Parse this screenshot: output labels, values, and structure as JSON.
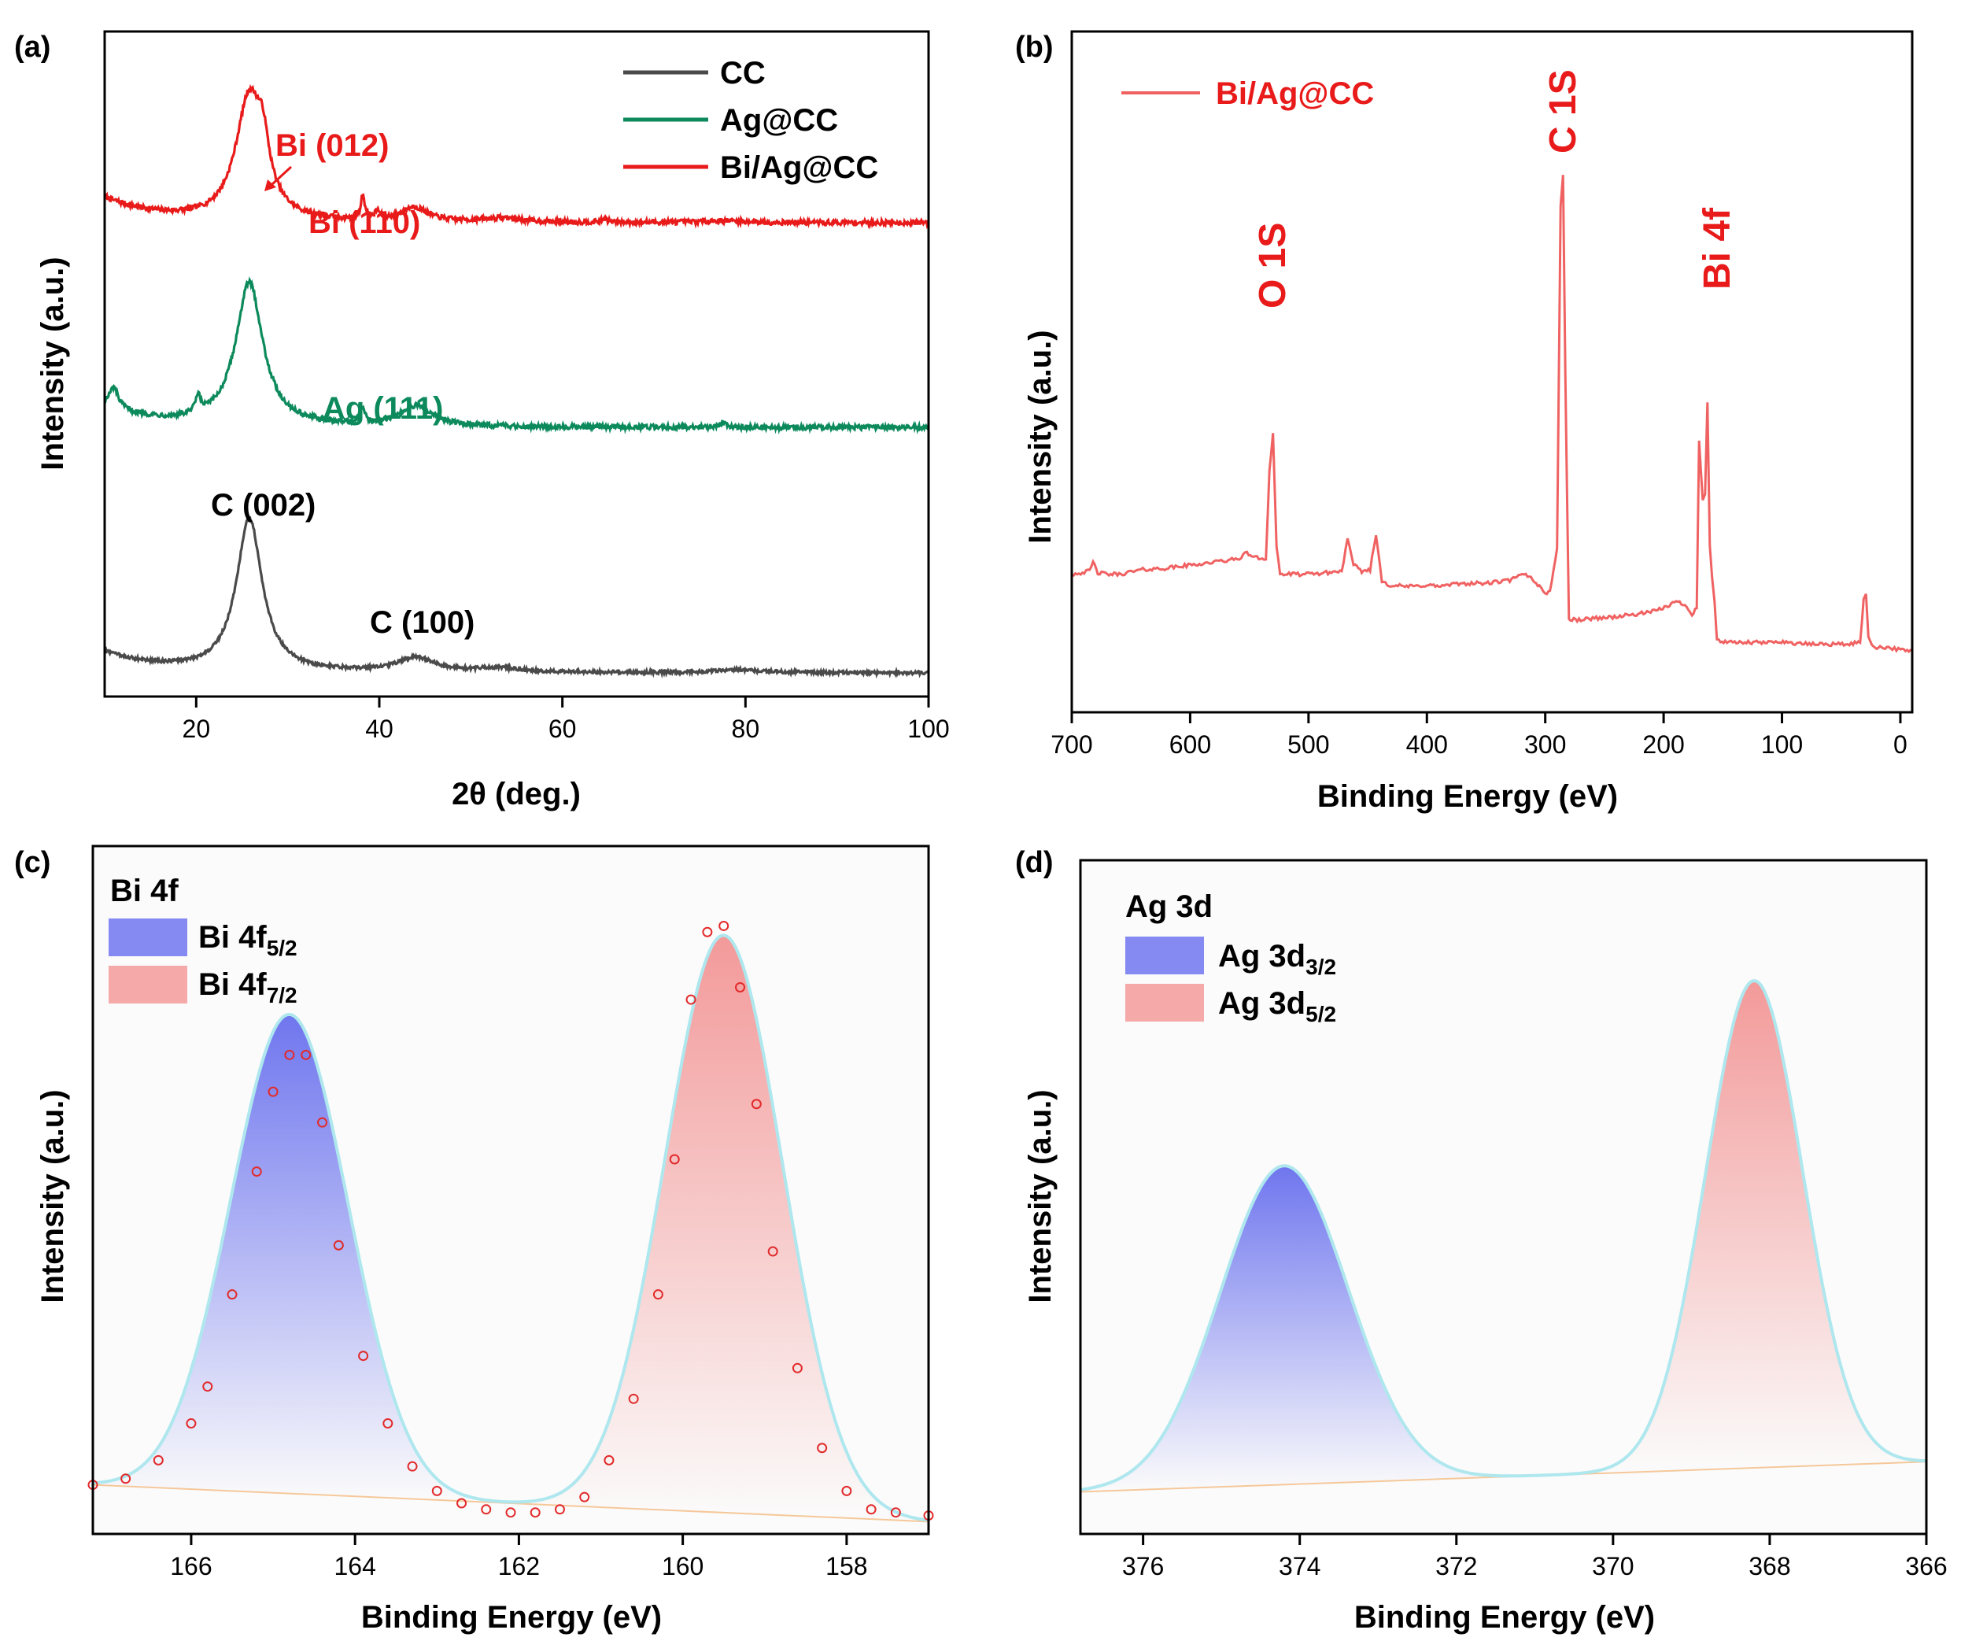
{
  "chart_data": [
    {
      "panel": "(a)",
      "type": "line",
      "xlabel": "2θ (deg.)",
      "ylabel": "Intensity (a.u.)",
      "xlim": [
        10,
        100
      ],
      "xticks": [
        "20",
        "40",
        "60",
        "80",
        "100"
      ],
      "xtick_values": [
        20,
        40,
        60,
        80,
        100
      ],
      "colors": {
        "CC": "#4a4a4a",
        "Ag@CC": "#0c8a5c",
        "Bi/Ag@CC": "#e81a1a"
      },
      "legend": [
        "CC",
        "Ag@CC",
        "Bi/Ag@CC"
      ],
      "series": [
        {
          "name": "Bi/Ag@CC",
          "offset": 2.2,
          "baseline": 0.12,
          "noise": 0.012,
          "peaks": [
            [
              25.8,
              0.6,
              1.8
            ],
            [
              27.3,
              0.2,
              0.8
            ],
            [
              38.2,
              0.12,
              0.25
            ],
            [
              39.8,
              0.04,
              0.3
            ],
            [
              43.8,
              0.07,
              1.8
            ],
            [
              53.5,
              0.02,
              2.5
            ],
            [
              64.6,
              0.02,
              0.3
            ],
            [
              77.5,
              0.01,
              2.5
            ]
          ]
        },
        {
          "name": "Ag@CC",
          "offset": 1.2,
          "baseline": 0.1,
          "noise": 0.012,
          "peaks": [
            [
              25.8,
              0.7,
              1.8
            ],
            [
              11.0,
              0.1,
              0.6
            ],
            [
              20.2,
              0.08,
              0.35
            ],
            [
              38.2,
              0.07,
              0.3
            ],
            [
              44.0,
              0.1,
              2.2
            ],
            [
              77.5,
              0.02,
              0.5
            ]
          ]
        },
        {
          "name": "CC",
          "offset": 0.0,
          "baseline": 0.1,
          "noise": 0.008,
          "peaks": [
            [
              25.8,
              0.75,
              1.7
            ],
            [
              44.0,
              0.07,
              2.5
            ],
            [
              53.0,
              0.02,
              3
            ],
            [
              79.0,
              0.015,
              3
            ]
          ]
        }
      ],
      "annotations": [
        {
          "text": "Bi (012)",
          "color": "#e81a1a"
        },
        {
          "text": "Bi (110)",
          "color": "#e81a1a"
        },
        {
          "text": "Ag (111)",
          "color": "#0c8a5c"
        },
        {
          "text": "C (002)",
          "color": "#000000"
        },
        {
          "text": "C (100)",
          "color": "#000000"
        }
      ]
    },
    {
      "panel": "(b)",
      "type": "line",
      "xlabel": "Binding Energy (eV)",
      "ylabel": "Intensity (a.u.)",
      "xlim": [
        700,
        -10
      ],
      "xticks": [
        "700",
        "600",
        "500",
        "400",
        "300",
        "200",
        "100",
        "0"
      ],
      "xtick_values": [
        700,
        600,
        500,
        400,
        300,
        200,
        100,
        0
      ],
      "color": "#f06262",
      "legend": [
        "Bi/Ag@CC"
      ],
      "series": [
        {
          "name": "Bi/Ag@CC",
          "x": [
            700,
            685,
            682,
            678,
            670,
            660,
            640,
            620,
            600,
            580,
            560,
            552,
            545,
            536,
            533,
            530,
            527,
            524,
            515,
            500,
            485,
            472,
            467,
            462,
            455,
            448,
            443,
            438,
            432,
            420,
            410,
            400,
            390,
            370,
            350,
            330,
            318,
            312,
            305,
            300,
            296,
            290,
            287,
            285,
            283,
            280,
            276,
            270,
            260,
            240,
            220,
            205,
            195,
            188,
            182,
            176,
            172,
            170,
            167,
            165,
            163,
            161,
            159,
            157,
            155,
            152,
            148,
            140,
            130,
            120,
            110,
            102,
            95,
            80,
            60,
            40,
            34,
            31,
            29,
            27,
            24,
            20,
            10,
            5,
            0,
            -10
          ],
          "y": [
            0.52,
            0.54,
            0.6,
            0.53,
            0.52,
            0.52,
            0.55,
            0.56,
            0.58,
            0.6,
            0.62,
            0.66,
            0.63,
            0.62,
            1.2,
            1.45,
            0.7,
            0.52,
            0.52,
            0.52,
            0.53,
            0.54,
            0.75,
            0.58,
            0.54,
            0.55,
            0.78,
            0.48,
            0.45,
            0.44,
            0.44,
            0.45,
            0.44,
            0.46,
            0.46,
            0.48,
            0.52,
            0.5,
            0.44,
            0.4,
            0.4,
            0.7,
            2.95,
            3.15,
            1.8,
            0.22,
            0.22,
            0.22,
            0.23,
            0.24,
            0.26,
            0.28,
            0.32,
            0.34,
            0.32,
            0.26,
            0.3,
            1.4,
            1.0,
            1.05,
            1.65,
            0.7,
            0.5,
            0.34,
            0.1,
            0.08,
            0.07,
            0.07,
            0.07,
            0.07,
            0.07,
            0.08,
            0.07,
            0.06,
            0.06,
            0.06,
            0.08,
            0.35,
            0.4,
            0.1,
            0.05,
            0.04,
            0.04,
            0.03,
            0.02,
            0.02
          ]
        }
      ],
      "annotations": [
        {
          "text": "O 1S",
          "color": "#e81a1a"
        },
        {
          "text": "C 1S",
          "color": "#e81a1a"
        },
        {
          "text": "Bi 4f",
          "color": "#e81a1a"
        }
      ]
    },
    {
      "panel": "(c)",
      "type": "area",
      "title": "Bi 4f",
      "xlabel": "Binding Energy (eV)",
      "ylabel": "Intensity (a.u.)",
      "xlim": [
        167.2,
        157.0
      ],
      "xticks": [
        "166",
        "164",
        "162",
        "160",
        "158"
      ],
      "xtick_values": [
        166,
        164,
        162,
        160,
        158
      ],
      "ylim": [
        0,
        1.12
      ],
      "baseline": [
        0.08,
        0.02
      ],
      "legend": [
        {
          "label": "Bi 4f",
          "sub": "5/2",
          "color": "#6f76ee"
        },
        {
          "label": "Bi 4f",
          "sub": "7/2",
          "color": "#f39a9a"
        }
      ],
      "series": [
        {
          "name": "Bi 4f5/2",
          "center": 164.8,
          "height": 0.78,
          "sigma": 0.72,
          "color": "#6f76ee"
        },
        {
          "name": "Bi 4f7/2",
          "center": 159.5,
          "height": 0.94,
          "sigma": 0.72,
          "color": "#f39a9a"
        }
      ],
      "envelope_color": "#aee7ee",
      "raw_data": {
        "color": "#e22a2a",
        "x": [
          167.2,
          166.8,
          166.4,
          166.0,
          165.8,
          165.5,
          165.2,
          165.0,
          164.8,
          164.6,
          164.4,
          164.2,
          163.9,
          163.6,
          163.3,
          163.0,
          162.7,
          162.4,
          162.1,
          161.8,
          161.5,
          161.2,
          160.9,
          160.6,
          160.3,
          160.1,
          159.9,
          159.7,
          159.5,
          159.3,
          159.1,
          158.9,
          158.6,
          158.3,
          158.0,
          157.7,
          157.4,
          157.0
        ],
        "y": [
          0.08,
          0.09,
          0.12,
          0.18,
          0.24,
          0.39,
          0.59,
          0.72,
          0.78,
          0.78,
          0.67,
          0.47,
          0.29,
          0.18,
          0.11,
          0.07,
          0.05,
          0.04,
          0.035,
          0.035,
          0.04,
          0.06,
          0.12,
          0.22,
          0.39,
          0.61,
          0.87,
          0.98,
          0.99,
          0.89,
          0.7,
          0.46,
          0.27,
          0.14,
          0.07,
          0.04,
          0.035,
          0.03
        ]
      }
    },
    {
      "panel": "(d)",
      "type": "area",
      "title": "Ag 3d",
      "xlabel": "Binding Energy (eV)",
      "ylabel": "Intensity (a.u.)",
      "xlim": [
        376.8,
        366.0
      ],
      "xticks": [
        "376",
        "374",
        "372",
        "370",
        "368",
        "366"
      ],
      "xtick_values": [
        376,
        374,
        372,
        370,
        368,
        366
      ],
      "ylim": [
        0,
        1.12
      ],
      "baseline": [
        0.07,
        0.12
      ],
      "legend": [
        {
          "label": "Ag 3d",
          "sub": "3/2",
          "color": "#6f76ee"
        },
        {
          "label": "Ag 3d",
          "sub": "5/2",
          "color": "#f39a9a"
        }
      ],
      "series": [
        {
          "name": "Ag 3d3/2",
          "center": 374.2,
          "height": 0.53,
          "sigma": 0.82,
          "color": "#6f76ee"
        },
        {
          "name": "Ag 3d5/2",
          "center": 368.2,
          "height": 0.81,
          "sigma": 0.62,
          "color": "#f39a9a"
        }
      ],
      "envelope_color": "#aee7ee"
    }
  ]
}
